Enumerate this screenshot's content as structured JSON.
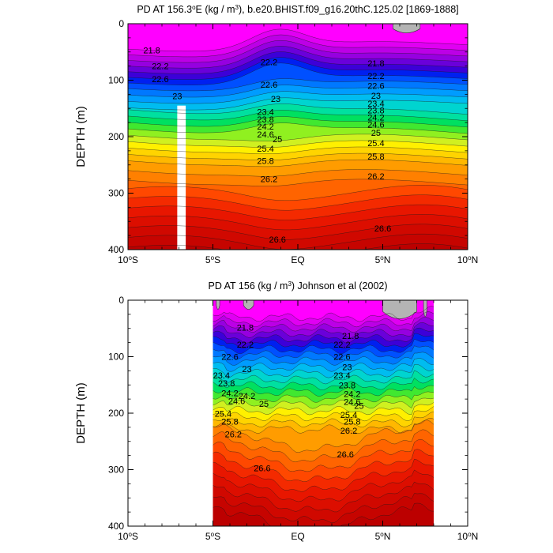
{
  "chart_data": [
    {
      "type": "heatmap",
      "title": "PD AT 156.3°E (kg / m³), b.e20.BHIST.f09_g16.20thC.125.02 [1869-1888]",
      "title_parts": {
        "a": "PD AT 156.3",
        "sup1": "o",
        "b": "E (kg / m",
        "sup2": "3",
        "c": "), b.e20.BHIST.f09_g16.20thC.125.02 [1869-1888]"
      },
      "ylabel": "DEPTH (m)",
      "xlim": [
        -10,
        10
      ],
      "ylim": [
        0,
        400
      ],
      "y_reversed": true,
      "data_x_range": [
        -10,
        10
      ],
      "gap_x_range": [
        -7.1,
        -6.6
      ],
      "gap_depth_from": 145,
      "x_ticks": [
        {
          "value": -10,
          "label": "10",
          "sup": "o",
          "hemi": "S"
        },
        {
          "value": -5,
          "label": "5",
          "sup": "o",
          "hemi": "S"
        },
        {
          "value": 0,
          "label": "EQ",
          "sup": "",
          "hemi": ""
        },
        {
          "value": 5,
          "label": "5",
          "sup": "o",
          "hemi": "N"
        },
        {
          "value": 10,
          "label": "10",
          "sup": "o",
          "hemi": "N"
        }
      ],
      "y_ticks": [
        0,
        100,
        200,
        300,
        400
      ],
      "contour_labels": [
        {
          "text": "21.8",
          "x": -8.6,
          "y": 47
        },
        {
          "text": "21.8",
          "x": 4.6,
          "y": 70
        },
        {
          "text": "22.2",
          "x": -8.1,
          "y": 75
        },
        {
          "text": "22.2",
          "x": -1.7,
          "y": 68
        },
        {
          "text": "22.2",
          "x": 4.6,
          "y": 92
        },
        {
          "text": "22.6",
          "x": -8.1,
          "y": 98
        },
        {
          "text": "22.6",
          "x": -1.7,
          "y": 108
        },
        {
          "text": "22.6",
          "x": 4.6,
          "y": 110
        },
        {
          "text": "23",
          "x": -7.1,
          "y": 128
        },
        {
          "text": "23",
          "x": -1.3,
          "y": 133
        },
        {
          "text": "23",
          "x": 4.6,
          "y": 127
        },
        {
          "text": "23.4",
          "x": -1.9,
          "y": 156
        },
        {
          "text": "23.4",
          "x": 4.6,
          "y": 141
        },
        {
          "text": "23.8",
          "x": -1.9,
          "y": 169
        },
        {
          "text": "23.8",
          "x": 4.6,
          "y": 153
        },
        {
          "text": "24.2",
          "x": -1.9,
          "y": 182
        },
        {
          "text": "24.2",
          "x": 4.6,
          "y": 166
        },
        {
          "text": "24.6",
          "x": -1.9,
          "y": 196
        },
        {
          "text": "24.6",
          "x": 4.6,
          "y": 178
        },
        {
          "text": "25",
          "x": -1.2,
          "y": 204
        },
        {
          "text": "25",
          "x": 4.6,
          "y": 193
        },
        {
          "text": "25.4",
          "x": -1.9,
          "y": 221
        },
        {
          "text": "25.4",
          "x": 4.6,
          "y": 211
        },
        {
          "text": "25.8",
          "x": -1.9,
          "y": 243
        },
        {
          "text": "25.8",
          "x": 4.6,
          "y": 235
        },
        {
          "text": "26.2",
          "x": -1.7,
          "y": 275
        },
        {
          "text": "26.2",
          "x": 4.6,
          "y": 270
        },
        {
          "text": "26.6",
          "x": -1.2,
          "y": 382
        },
        {
          "text": "26.6",
          "x": 5.0,
          "y": 362
        }
      ],
      "grey_patches": [
        {
          "x": [
            5.6,
            7.2
          ],
          "y_max": 18
        }
      ]
    },
    {
      "type": "heatmap",
      "title": "PD AT 156 (kg / m³) Johnson et al (2002)",
      "title_parts": {
        "a": "PD AT 156 (kg / m",
        "sup1": "3",
        "b": ") Johnson et al (2002)"
      },
      "ylabel": "DEPTH (m)",
      "xlim": [
        -10,
        10
      ],
      "ylim": [
        0,
        400
      ],
      "y_reversed": true,
      "data_x_range": [
        -5,
        8
      ],
      "x_ticks": [
        {
          "value": -10,
          "label": "10",
          "sup": "o",
          "hemi": "S"
        },
        {
          "value": -5,
          "label": "5",
          "sup": "o",
          "hemi": "S"
        },
        {
          "value": 0,
          "label": "EQ",
          "sup": "",
          "hemi": ""
        },
        {
          "value": 5,
          "label": "5",
          "sup": "o",
          "hemi": "N"
        },
        {
          "value": 10,
          "label": "10",
          "sup": "o",
          "hemi": "N"
        }
      ],
      "y_ticks": [
        0,
        100,
        200,
        300,
        400
      ],
      "contour_labels": [
        {
          "text": "21.8",
          "x": -3.1,
          "y": 48
        },
        {
          "text": "21.8",
          "x": 3.1,
          "y": 63
        },
        {
          "text": "22.2",
          "x": -3.1,
          "y": 78
        },
        {
          "text": "22.2",
          "x": 2.6,
          "y": 78
        },
        {
          "text": "22.6",
          "x": -4.0,
          "y": 100
        },
        {
          "text": "22.6",
          "x": 2.6,
          "y": 100
        },
        {
          "text": "23",
          "x": -3.0,
          "y": 122
        },
        {
          "text": "23",
          "x": 2.9,
          "y": 118
        },
        {
          "text": "23.4",
          "x": -4.5,
          "y": 133
        },
        {
          "text": "23.4",
          "x": 2.6,
          "y": 133
        },
        {
          "text": "23.8",
          "x": -4.2,
          "y": 147
        },
        {
          "text": "23.8",
          "x": 2.9,
          "y": 150
        },
        {
          "text": "24.2",
          "x": -4.0,
          "y": 164
        },
        {
          "text": "24.2",
          "x": 3.2,
          "y": 166
        },
        {
          "text": "24.2",
          "x": -3.0,
          "y": 169
        },
        {
          "text": "24.6",
          "x": -3.6,
          "y": 178
        },
        {
          "text": "24.6",
          "x": 3.2,
          "y": 180
        },
        {
          "text": "25",
          "x": -2.0,
          "y": 183
        },
        {
          "text": "25",
          "x": 3.6,
          "y": 187
        },
        {
          "text": "25.4",
          "x": -4.4,
          "y": 201
        },
        {
          "text": "25.4",
          "x": 3.0,
          "y": 203
        },
        {
          "text": "25.8",
          "x": -4.0,
          "y": 215
        },
        {
          "text": "25.8",
          "x": 3.2,
          "y": 215
        },
        {
          "text": "26.2",
          "x": -3.8,
          "y": 237
        },
        {
          "text": "26.2",
          "x": 3.0,
          "y": 231
        },
        {
          "text": "26.6",
          "x": -2.1,
          "y": 297
        },
        {
          "text": "26.6",
          "x": 2.8,
          "y": 273
        }
      ],
      "grey_patches": [
        {
          "x": [
            -4.8,
            -4.6
          ],
          "y_max": 18
        },
        {
          "x": [
            -3.2,
            -2.6
          ],
          "y_max": 18
        },
        {
          "x": [
            5.0,
            7.0
          ],
          "y_max": 40
        },
        {
          "x": [
            7.4,
            7.6
          ],
          "y_max": 35
        }
      ]
    }
  ]
}
